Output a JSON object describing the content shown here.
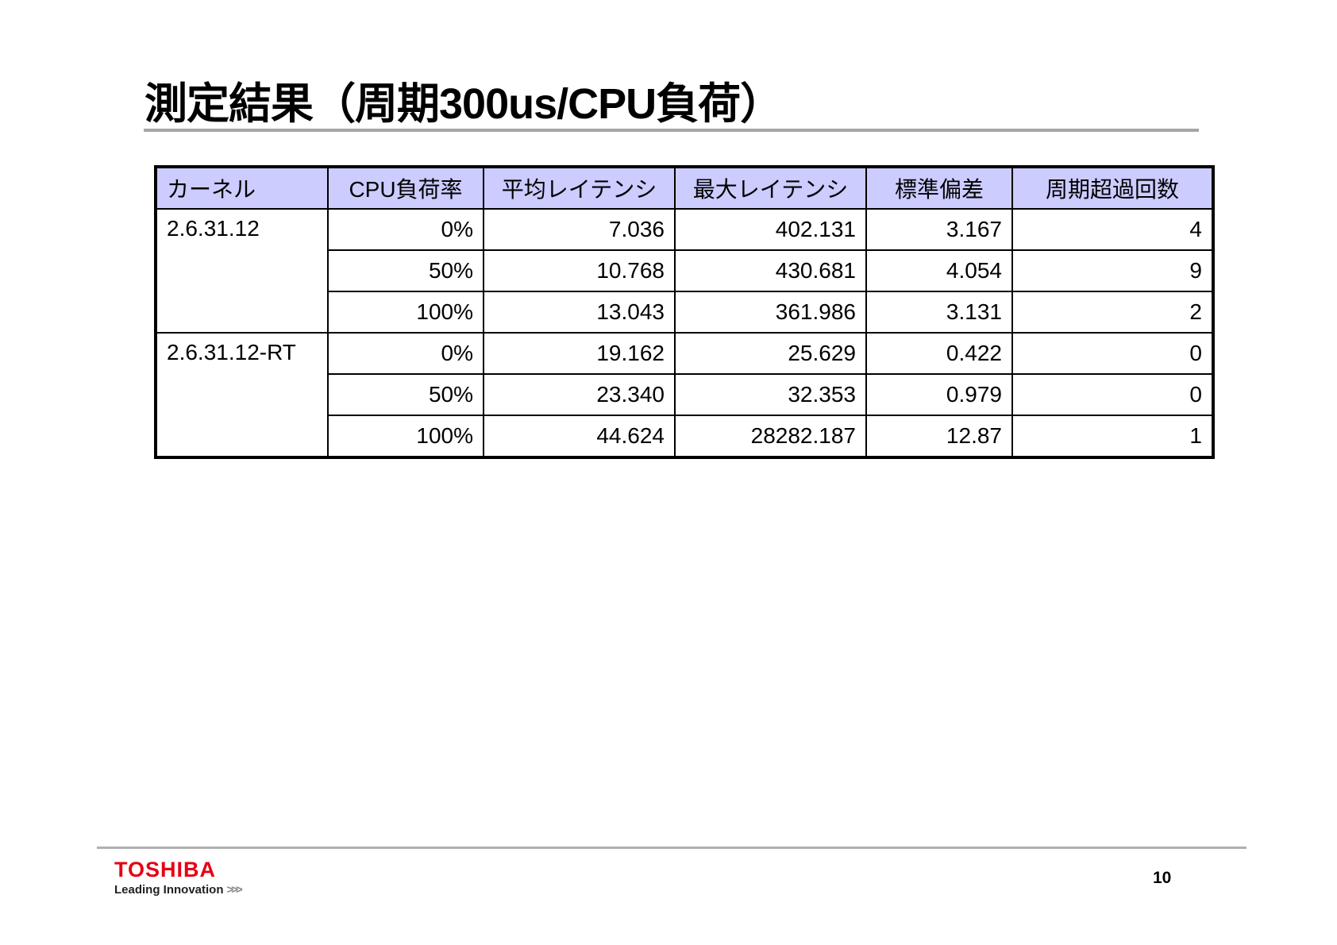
{
  "title": "測定結果（周期300us/CPU負荷）",
  "table": {
    "headers": [
      "カーネル",
      "CPU負荷率",
      "平均レイテンシ",
      "最大レイテンシ",
      "標準偏差",
      "周期超過回数"
    ],
    "groups": [
      {
        "kernel": "2.6.31.12",
        "rows": [
          [
            "0%",
            "7.036",
            "402.131",
            "3.167",
            "4"
          ],
          [
            "50%",
            "10.768",
            "430.681",
            "4.054",
            "9"
          ],
          [
            "100%",
            "13.043",
            "361.986",
            "3.131",
            "2"
          ]
        ]
      },
      {
        "kernel": "2.6.31.12-RT",
        "rows": [
          [
            "0%",
            "19.162",
            "25.629",
            "0.422",
            "0"
          ],
          [
            "50%",
            "23.340",
            "32.353",
            "0.979",
            "0"
          ],
          [
            "100%",
            "44.624",
            "28282.187",
            "12.87",
            "1"
          ]
        ]
      }
    ]
  },
  "footer": {
    "logo": "TOSHIBA",
    "tagline": "Leading Innovation",
    "tagline_mark": ">>>",
    "page_number": "10"
  },
  "colors": {
    "header_bg": "#ccccff",
    "logo": "#e60012"
  }
}
